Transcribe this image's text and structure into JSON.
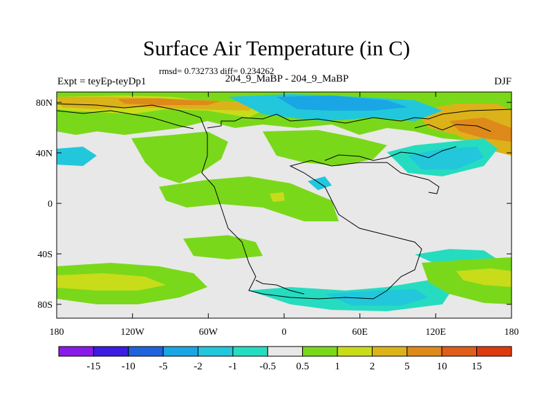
{
  "title": "Surface Air Temperature (in C)",
  "stats": "rmsd= 0.732733 diff= 0.234262",
  "experiment": "Expt = teyEp-teyDp1",
  "comparison": "204_9_MaBP - 204_9_MaBP",
  "season": "DJF",
  "lat_ticks": [
    "80N",
    "40N",
    "0",
    "40S",
    "80S"
  ],
  "lon_ticks": [
    "180",
    "120W",
    "60W",
    "0",
    "60E",
    "120E",
    "180"
  ],
  "colorbar": {
    "labels": [
      "-15",
      "-10",
      "-5",
      "-2",
      "-1",
      "-0.5",
      "0.5",
      "1",
      "2",
      "5",
      "10",
      "15"
    ],
    "colors": [
      "#8a1aea",
      "#3d1ce0",
      "#1f62dc",
      "#1aa6e4",
      "#22c7dc",
      "#26dcc0",
      "#e8e8e8",
      "#7ad81a",
      "#c8dc1a",
      "#dcb21a",
      "#de8a1a",
      "#de5e1a",
      "#de3a10"
    ]
  },
  "field_colors": {
    "background": "#e8e8e8",
    "warm_light": "#7ad81a",
    "warm_mid": "#c8dc1a",
    "warm_high": "#dcb21a",
    "warm_top": "#de8a1a",
    "cool_light": "#26dcc0",
    "cool_mid": "#22c7dc",
    "cool_strong": "#1aa6e4"
  }
}
